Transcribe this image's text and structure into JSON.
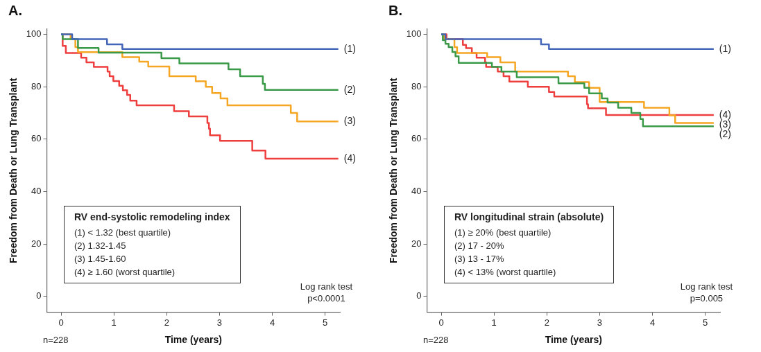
{
  "chart_data": [
    {
      "type": "step",
      "title": "A.",
      "xlabel": "Time (years)",
      "ylabel": "Freedom from Death or Lung Transplant",
      "xlim": [
        -0.27,
        5.28
      ],
      "xticks": [
        0,
        1,
        2,
        3,
        4,
        5
      ],
      "ylim": [
        -6,
        102
      ],
      "yticks": [
        0,
        20,
        40,
        60,
        80,
        100
      ],
      "grid": false,
      "legend": false,
      "marker": "none",
      "line_style": "solid",
      "annotations": [
        "RV end-systolic remodeling index",
        "(1)  < 1.32 (best quartile)",
        "(2)  1.32-1.45",
        "(3)  1.45-1.60",
        "(4)  ≥ 1.60 (worst quartile)",
        "Log rank test",
        "p<0.0001",
        "n=228"
      ],
      "series": [
        {
          "name": "(1)",
          "color": "#4466b8",
          "x": [
            0,
            0.21,
            0.87,
            1.16,
            5.25
          ],
          "values": [
            100,
            98.2,
            96.2,
            94.4,
            94.4
          ]
        },
        {
          "name": "(2)",
          "color": "#3a9a48",
          "x": [
            0,
            0.03,
            0.32,
            0.71,
            1.9,
            2.24,
            3.17,
            3.39,
            3.82,
            3.86,
            5.25
          ],
          "values": [
            100,
            98.2,
            94.8,
            93.0,
            90.9,
            88.9,
            86.7,
            84.0,
            81.1,
            78.8,
            78.8
          ]
        },
        {
          "name": "(3)",
          "color": "#f5a623",
          "x": [
            0,
            0.18,
            0.27,
            0.32,
            1.16,
            1.48,
            1.65,
            2.05,
            2.55,
            2.74,
            2.86,
            3.02,
            3.15,
            4.35,
            4.47,
            5.25
          ],
          "values": [
            100,
            98.2,
            95.1,
            93.2,
            91.3,
            89.6,
            87.7,
            84.0,
            82.1,
            80.0,
            77.6,
            75.6,
            72.9,
            70.0,
            66.8,
            66.8
          ]
        },
        {
          "name": "(4)",
          "color": "#ee3e3e",
          "x": [
            0,
            0.03,
            0.09,
            0.38,
            0.48,
            0.62,
            0.88,
            0.92,
            0.99,
            1.1,
            1.17,
            1.25,
            1.31,
            1.43,
            2.14,
            2.42,
            2.77,
            2.8,
            2.82,
            3.01,
            3.62,
            3.87,
            5.25
          ],
          "values": [
            100,
            95.6,
            92.9,
            91.1,
            89.3,
            87.6,
            85.8,
            84.0,
            82.2,
            80.4,
            78.7,
            76.9,
            74.7,
            72.9,
            70.7,
            68.7,
            66.2,
            64.0,
            61.5,
            59.4,
            55.7,
            52.6,
            52.6
          ]
        }
      ]
    },
    {
      "type": "step",
      "title": "B.",
      "xlabel": "Time (years)",
      "ylabel": "Freedom from Death or Lung Transplant",
      "xlim": [
        -0.27,
        5.28
      ],
      "xticks": [
        0,
        1,
        2,
        3,
        4,
        5
      ],
      "ylim": [
        -6,
        102
      ],
      "yticks": [
        0,
        20,
        40,
        60,
        80,
        100
      ],
      "grid": false,
      "legend": false,
      "marker": "none",
      "line_style": "solid",
      "annotations": [
        "RV longitudinal strain (absolute)",
        "(1)  ≥ 20% (best quartile)",
        "(2)  17 - 20%",
        "(3)  13 - 17%",
        "(4)  < 13% (worst quartile)",
        "Log rank test",
        "p=0.005",
        "n=228"
      ],
      "series": [
        {
          "name": "(1)",
          "color": "#4466b8",
          "x": [
            0,
            0.08,
            1.89,
            2.04,
            5.16
          ],
          "values": [
            100,
            98.2,
            96.2,
            94.4,
            94.4
          ]
        },
        {
          "name": "(2)",
          "color": "#3a9a48",
          "x": [
            0,
            0.03,
            0.08,
            0.14,
            0.21,
            0.27,
            0.33,
            0.96,
            1.14,
            1.43,
            2.22,
            2.71,
            2.8,
            3.04,
            3.15,
            3.35,
            3.6,
            3.77,
            3.82,
            5.16
          ],
          "values": [
            100,
            97.8,
            96.4,
            95.1,
            93.3,
            91.6,
            89.1,
            87.6,
            85.8,
            83.6,
            81.3,
            79.6,
            77.5,
            75.6,
            74.0,
            72.0,
            70.0,
            67.7,
            64.9,
            64.9
          ]
        },
        {
          "name": "(3)",
          "color": "#f5a623",
          "x": [
            0,
            0.05,
            0.25,
            0.3,
            0.87,
            1.12,
            1.4,
            2.4,
            2.53,
            2.8,
            3.0,
            3.84,
            4.32,
            4.43,
            5.16
          ],
          "values": [
            100,
            98.2,
            95.1,
            92.9,
            91.3,
            89.3,
            85.8,
            84.0,
            81.8,
            79.6,
            74.2,
            72.0,
            69.1,
            66.2,
            66.2
          ]
        },
        {
          "name": "(4)",
          "color": "#ee3e3e",
          "x": [
            0,
            0.1,
            0.41,
            0.47,
            0.58,
            0.67,
            0.83,
            0.85,
            1.07,
            1.18,
            1.29,
            1.64,
            2.04,
            2.14,
            2.76,
            2.78,
            3.12,
            5.16
          ],
          "values": [
            100,
            98.2,
            96.0,
            94.7,
            92.9,
            91.1,
            89.3,
            87.6,
            85.8,
            84.0,
            82.0,
            80.0,
            78.0,
            76.3,
            73.3,
            71.8,
            69.2,
            69.2
          ]
        }
      ]
    }
  ]
}
